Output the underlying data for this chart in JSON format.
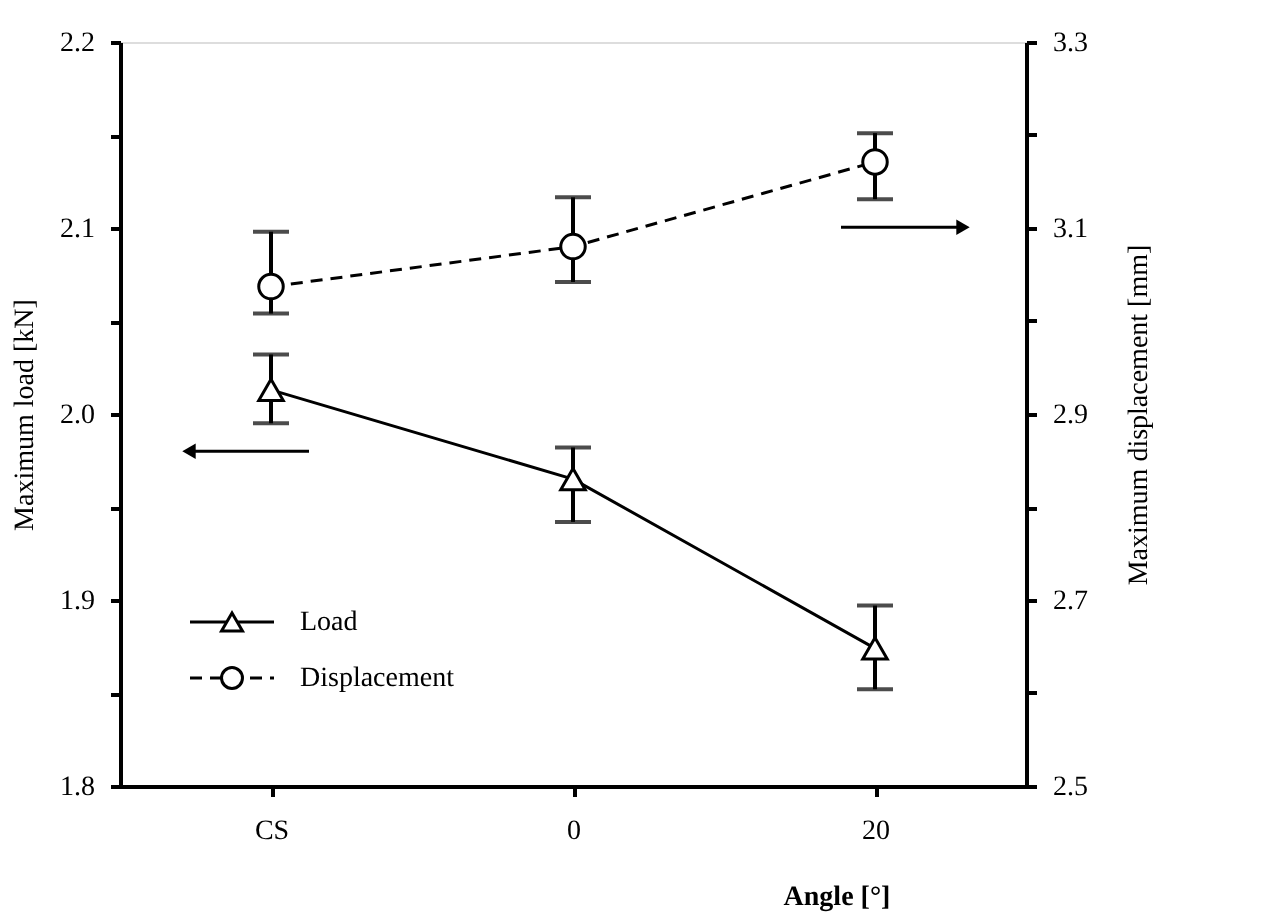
{
  "chart_data": {
    "type": "line",
    "xlabel": "Angle [°]",
    "ylabel": "Maximum load [kN]",
    "y2label": "Maximum displacement [mm]",
    "categories": [
      "CS",
      "0",
      "20"
    ],
    "series": [
      {
        "name": "Load",
        "color": "#000000",
        "values": [
          2.013,
          1.965,
          1.874
        ],
        "errors": [
          [
            1.995,
            2.032
          ],
          [
            1.942,
            1.982
          ],
          [
            1.852,
            1.897
          ]
        ],
        "marker": "triangle",
        "line_style": "solid"
      },
      {
        "name": "Displacement",
        "color": "#000000",
        "axis": "y2",
        "values": [
          3.037,
          3.08,
          3.171
        ],
        "errors": [
          [
            3.008,
            3.096
          ],
          [
            3.042,
            3.133
          ],
          [
            3.131,
            3.202
          ]
        ],
        "marker": "circle",
        "line_style": "dashed"
      }
    ],
    "ylim": [
      1.8,
      2.2
    ],
    "yticks": [
      {
        "value": 1.8,
        "label": "1.8"
      },
      {
        "value": 1.85,
        "label": null
      },
      {
        "value": 1.9,
        "label": "1.9"
      },
      {
        "value": 1.95,
        "label": null
      },
      {
        "value": 2.0,
        "label": "2.0"
      },
      {
        "value": 2.05,
        "label": null
      },
      {
        "value": 2.1,
        "label": "2.1"
      },
      {
        "value": 2.15,
        "label": null
      },
      {
        "value": 2.2,
        "label": "2.2"
      }
    ],
    "y2lim": [
      2.5,
      3.3
    ],
    "y2ticks": [
      {
        "value": 2.5,
        "label": "2.5"
      },
      {
        "value": 2.6,
        "label": null
      },
      {
        "value": 2.7,
        "label": "2.7"
      },
      {
        "value": 2.8,
        "label": null
      },
      {
        "value": 2.9,
        "label": "2.9"
      },
      {
        "value": 3.0,
        "label": null
      },
      {
        "value": 3.1,
        "label": "3.1"
      },
      {
        "value": 3.2,
        "label": null
      },
      {
        "value": 3.3,
        "label": "3.3"
      }
    ],
    "grid": false,
    "legend": "bottom left"
  }
}
